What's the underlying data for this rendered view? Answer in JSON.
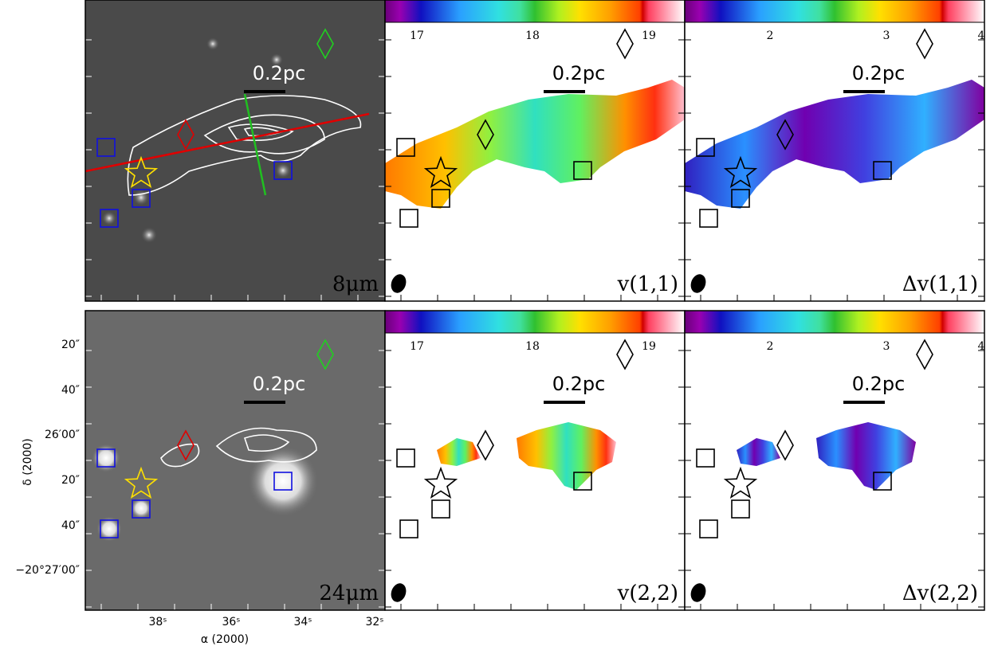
{
  "panels": [
    {
      "label": "8μm",
      "scale_bar": "0.2pc"
    },
    {
      "label": "v(1,1)",
      "scale_bar": "0.2pc",
      "colorbar_ticks": [
        "17",
        "18",
        "19"
      ]
    },
    {
      "label": "Δv(1,1)",
      "scale_bar": "0.2pc",
      "colorbar_ticks": [
        "2",
        "3",
        "4"
      ]
    },
    {
      "label": "24μm",
      "scale_bar": "0.2pc"
    },
    {
      "label": "v(2,2)",
      "scale_bar": "0.2pc",
      "colorbar_ticks": [
        "17",
        "18",
        "19"
      ]
    },
    {
      "label": "Δv(2,2)",
      "scale_bar": "0.2pc",
      "colorbar_ticks": [
        "2",
        "3",
        "4"
      ]
    }
  ],
  "axes": {
    "y_label": "δ (2000)",
    "x_label": "α (2000)",
    "y_ticks": [
      "20″",
      "40″",
      "26′00″",
      "20″",
      "40″",
      "−20°27′00″"
    ],
    "x_ticks": [
      "38ˢ",
      "36ˢ",
      "34ˢ",
      "32ˢ"
    ]
  }
}
